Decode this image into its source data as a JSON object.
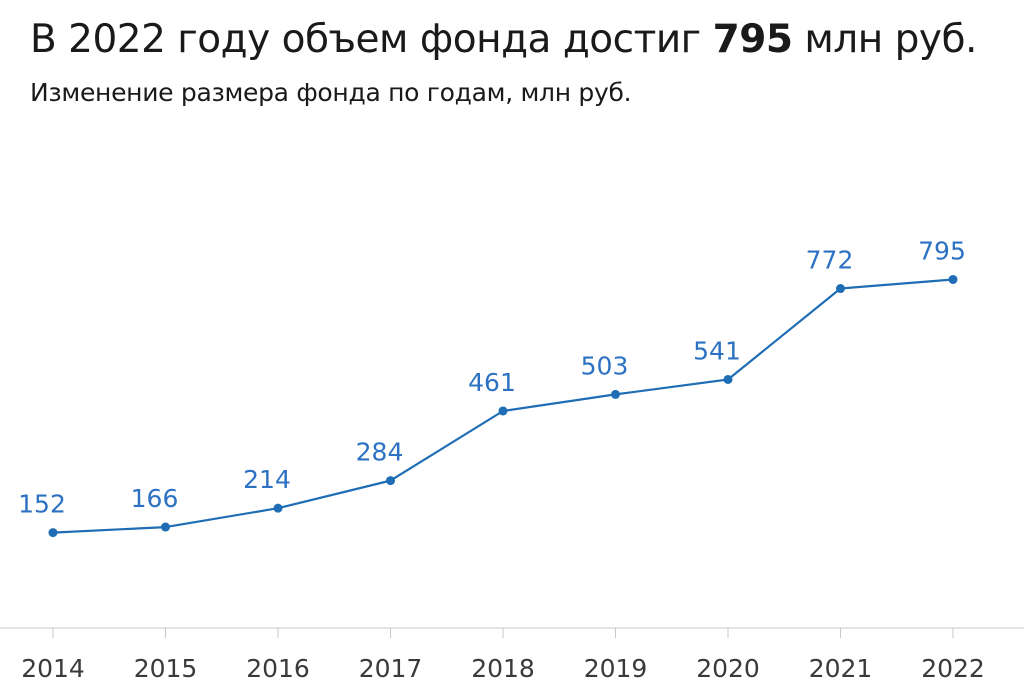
{
  "header": {
    "title_prefix": "В 2022 году объем фонда достиг ",
    "title_highlight": "795",
    "title_suffix": " млн руб.",
    "subtitle": "Изменение размера фонда по годам, млн руб."
  },
  "colors": {
    "series": "#1f6db5",
    "label": "#2d72c2",
    "axis": "#c8c8c8",
    "tick_text": "#3a3a3a"
  },
  "chart_data": {
    "type": "line",
    "title": "В 2022 году объем фонда достиг 795 млн руб.",
    "subtitle": "Изменение размера фонда по годам, млн руб.",
    "categories": [
      "2014",
      "2015",
      "2016",
      "2017",
      "2018",
      "2019",
      "2020",
      "2021",
      "2022"
    ],
    "series": [
      {
        "values": [
          152,
          166,
          214,
          284,
          461,
          503,
          541,
          772,
          795
        ]
      }
    ],
    "ylim": [
      0,
      800
    ],
    "grid": false,
    "legend": "none",
    "data_labels": true
  }
}
